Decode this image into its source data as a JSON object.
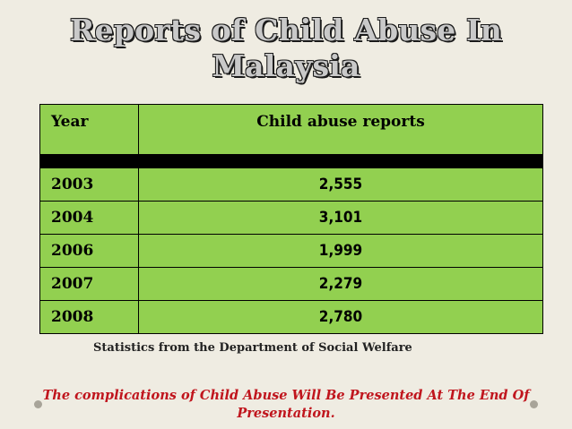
{
  "slide": {
    "title_line1": "Reports of Child Abuse In",
    "title_line2": "Malaysia",
    "table": {
      "headers": [
        "Year",
        "Child abuse reports"
      ],
      "rows": [
        {
          "year": "2003",
          "reports": "2,555"
        },
        {
          "year": "2004",
          "reports": "3,101"
        },
        {
          "year": "2006",
          "reports": "1,999"
        },
        {
          "year": "2007",
          "reports": "2,279"
        },
        {
          "year": "2008",
          "reports": "2,780"
        }
      ]
    },
    "source": "Statistics from the Department of Social Welfare",
    "note": "The complications of Child Abuse Will Be Presented At The End Of Presentation.",
    "colors": {
      "background": "#efece2",
      "table_fill": "#92d050",
      "note_text": "#c0151d",
      "title_text": "#c9c9c9"
    }
  }
}
